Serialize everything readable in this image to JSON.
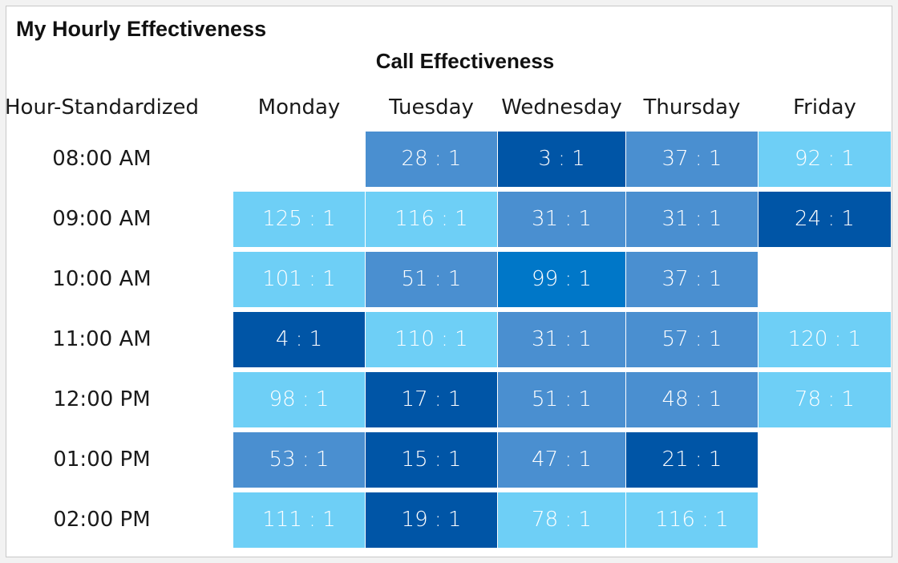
{
  "page": {
    "title": "My Hourly Effectiveness"
  },
  "chart_data": {
    "type": "heatmap",
    "title": "Call Effectiveness",
    "row_header_label": "Hour-Standardized",
    "columns": [
      "Monday",
      "Tuesday",
      "Wednesday",
      "Thursday",
      "Friday"
    ],
    "rows": [
      "08:00 AM",
      "09:00 AM",
      "10:00 AM",
      "11:00 AM",
      "12:00 PM",
      "01:00 PM",
      "02:00 PM"
    ],
    "values": [
      [
        null,
        28,
        3,
        37,
        92
      ],
      [
        125,
        116,
        31,
        31,
        24
      ],
      [
        101,
        51,
        99,
        37,
        null
      ],
      [
        4,
        110,
        31,
        57,
        120
      ],
      [
        98,
        17,
        51,
        48,
        78
      ],
      [
        53,
        15,
        47,
        21,
        null
      ],
      [
        111,
        19,
        78,
        116,
        null
      ]
    ],
    "value_suffix": " : 1",
    "colors": {
      "light": "#6ecff6",
      "medium": "#4a8fd0",
      "dark": "#0055a6",
      "bright": "#0077c8",
      "text": "#ffffff"
    },
    "cell_levels": [
      [
        null,
        "medium",
        "dark",
        "medium",
        "light"
      ],
      [
        "light",
        "light",
        "medium",
        "medium",
        "dark"
      ],
      [
        "light",
        "medium",
        "bright",
        "medium",
        null
      ],
      [
        "dark",
        "light",
        "medium",
        "medium",
        "light"
      ],
      [
        "light",
        "dark",
        "medium",
        "medium",
        "light"
      ],
      [
        "medium",
        "dark",
        "medium",
        "dark",
        null
      ],
      [
        "light",
        "dark",
        "light",
        "light",
        null
      ]
    ]
  }
}
